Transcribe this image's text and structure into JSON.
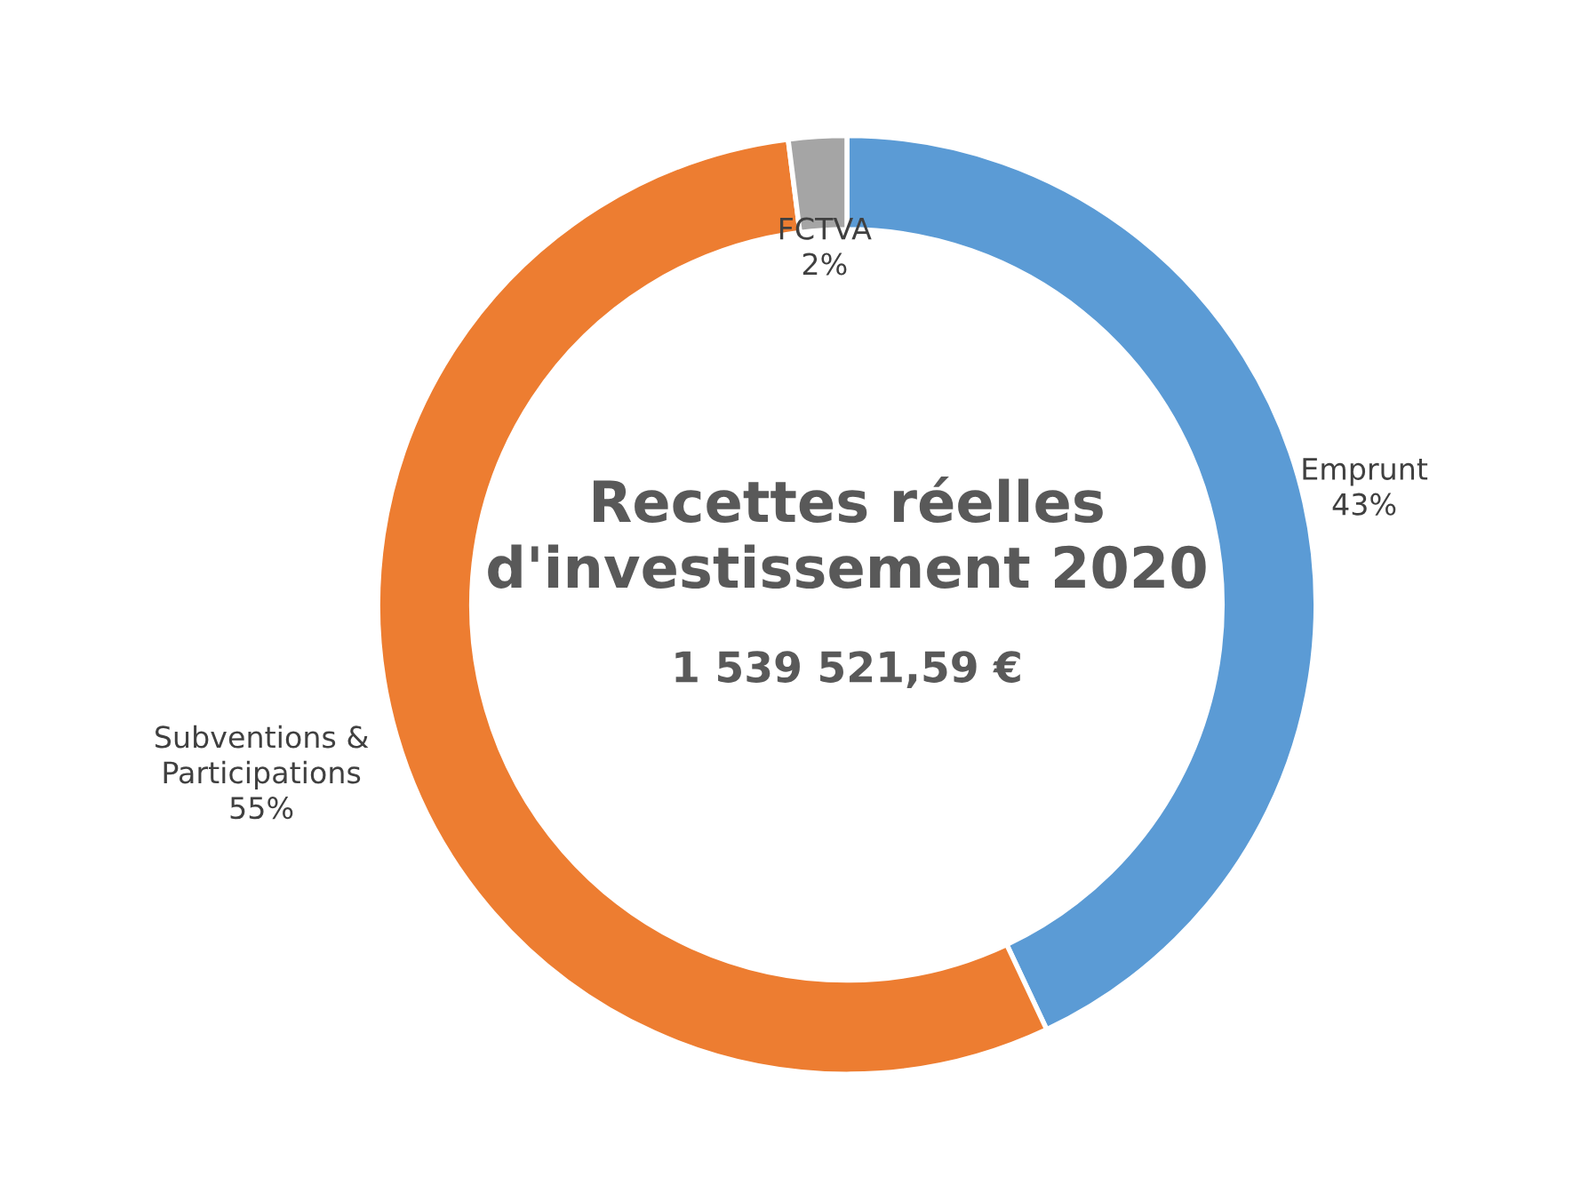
{
  "chart_data": {
    "type": "donut",
    "title": "Recettes réelles\nd'investissement 2020",
    "subtitle": "1 539 521,59 €",
    "categories": [
      "Emprunt",
      "Subventions &\nParticipations",
      "FCTVA"
    ],
    "values": [
      43,
      55,
      2
    ],
    "colors": [
      "#5b9bd5",
      "#ed7d31",
      "#a5a5a5"
    ],
    "value_labels": [
      "43%",
      "55%",
      "2%"
    ],
    "legend": false
  }
}
